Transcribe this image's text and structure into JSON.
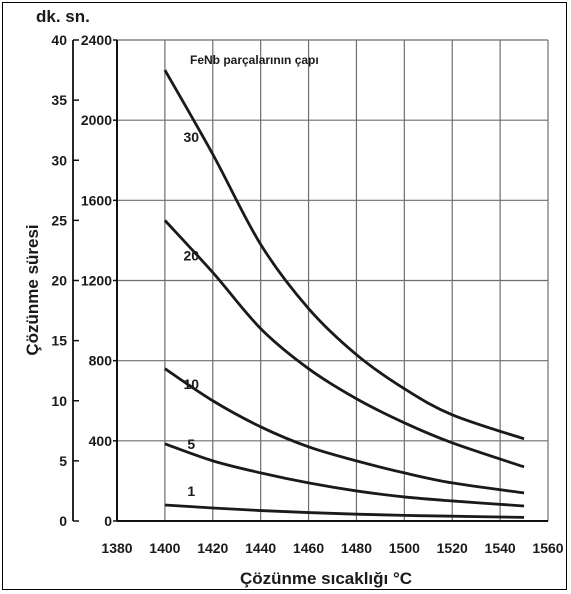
{
  "chart_data": {
    "type": "line",
    "unit_label": "dk. sn.",
    "xlabel": "Çözünme sıcaklığı  °C",
    "ylabel": "Çözünme süresi",
    "legend_title": "FeNb parçalarının çapı",
    "x_ticks": [
      "1380",
      "1400",
      "1420",
      "1440",
      "1460",
      "1480",
      "1500",
      "1520",
      "1540",
      "1560"
    ],
    "y_ticks_sec": [
      "0",
      "400",
      "800",
      "1200",
      "1600",
      "2000",
      "2400"
    ],
    "y_ticks_min": [
      "0",
      "5",
      "10",
      "15",
      "20",
      "25",
      "30",
      "35",
      "40"
    ],
    "xlim": [
      1380,
      1560
    ],
    "ylim": [
      0,
      2400
    ],
    "ylim_min": [
      0,
      40
    ],
    "grid": true,
    "series": [
      {
        "name": "30",
        "x": [
          1400,
          1420,
          1440,
          1460,
          1480,
          1500,
          1520,
          1550
        ],
        "values": [
          2250,
          1830,
          1380,
          1060,
          830,
          660,
          530,
          410
        ]
      },
      {
        "name": "20",
        "x": [
          1400,
          1420,
          1440,
          1460,
          1480,
          1500,
          1520,
          1550
        ],
        "values": [
          1500,
          1240,
          960,
          760,
          610,
          490,
          390,
          270
        ]
      },
      {
        "name": "10",
        "x": [
          1400,
          1420,
          1440,
          1460,
          1480,
          1500,
          1520,
          1550
        ],
        "values": [
          760,
          600,
          470,
          370,
          300,
          240,
          190,
          140
        ]
      },
      {
        "name": "5",
        "x": [
          1400,
          1420,
          1440,
          1460,
          1480,
          1500,
          1520,
          1550
        ],
        "values": [
          385,
          300,
          240,
          190,
          150,
          120,
          100,
          75
        ]
      },
      {
        "name": "1",
        "x": [
          1400,
          1420,
          1440,
          1460,
          1480,
          1500,
          1520,
          1550
        ],
        "values": [
          80,
          65,
          52,
          42,
          34,
          28,
          24,
          18
        ]
      }
    ]
  }
}
